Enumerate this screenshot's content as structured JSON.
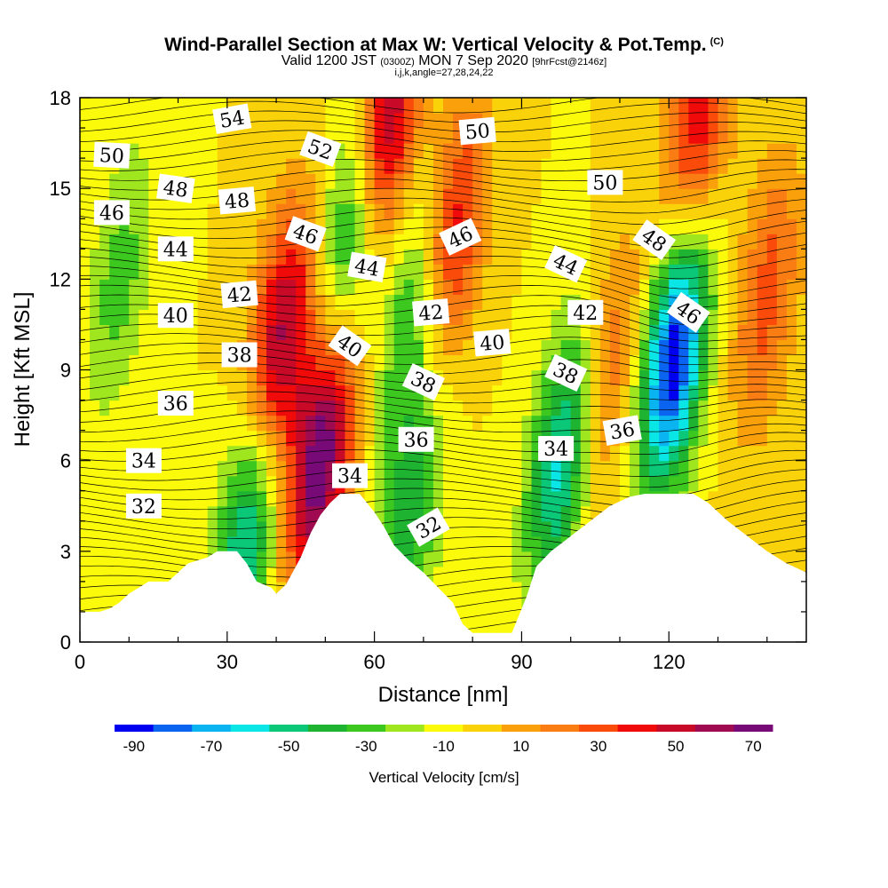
{
  "title": "Wind-Parallel Section at Max W: Vertical Velocity & Pot.Temp.",
  "copyright": "(C)",
  "subtitle": {
    "valid": "Valid 1200 JST",
    "utc": "(0300Z)",
    "date": "MON 7 Sep 2020",
    "forecast": "[9hrFcst@2146z]"
  },
  "params": "i,j,k,angle=27,28,24,22",
  "chart_data": {
    "type": "heatmap",
    "xlabel": "Distance [nm]",
    "ylabel": "Height [Kft MSL]",
    "xlim": [
      0,
      148
    ],
    "ylim": [
      0,
      18
    ],
    "x_ticks": [
      0,
      30,
      60,
      90,
      120
    ],
    "y_ticks": [
      0,
      3,
      6,
      9,
      12,
      15,
      18
    ],
    "colorbar": {
      "title": "Vertical Velocity [cm/s]",
      "range": [
        -90,
        80
      ],
      "step": 10,
      "tick_values": [
        -90,
        -70,
        -50,
        -30,
        -10,
        10,
        30,
        50,
        70
      ],
      "colors": [
        "#0000f0",
        "#0a64f0",
        "#0ab4f0",
        "#0ae6e6",
        "#0ac878",
        "#1eb432",
        "#3cc81e",
        "#a0e61e",
        "#fafa0a",
        "#fad20a",
        "#faa00a",
        "#fa7d14",
        "#fa4b0a",
        "#f00a0a",
        "#c80a28",
        "#a00a50",
        "#780a78"
      ]
    },
    "terrain": [
      [
        0,
        1.0
      ],
      [
        4,
        1.0
      ],
      [
        6,
        1.1
      ],
      [
        8,
        1.3
      ],
      [
        10,
        1.6
      ],
      [
        12,
        1.8
      ],
      [
        14,
        2.0
      ],
      [
        18,
        2.0
      ],
      [
        20,
        2.3
      ],
      [
        22,
        2.6
      ],
      [
        26,
        2.8
      ],
      [
        28,
        3.0
      ],
      [
        32,
        3.0
      ],
      [
        34,
        2.6
      ],
      [
        36,
        2.0
      ],
      [
        39,
        1.8
      ],
      [
        40,
        1.6
      ],
      [
        42,
        1.9
      ],
      [
        45,
        2.8
      ],
      [
        47,
        3.6
      ],
      [
        49,
        4.2
      ],
      [
        51,
        4.6
      ],
      [
        53,
        4.9
      ],
      [
        57,
        4.9
      ],
      [
        60,
        4.3
      ],
      [
        62,
        3.8
      ],
      [
        64,
        3.2
      ],
      [
        67,
        2.7
      ],
      [
        70,
        2.3
      ],
      [
        73,
        1.8
      ],
      [
        76,
        1.3
      ],
      [
        78,
        0.6
      ],
      [
        80,
        0.3
      ],
      [
        88,
        0.3
      ],
      [
        91,
        1.5
      ],
      [
        93,
        2.5
      ],
      [
        96,
        3.0
      ],
      [
        100,
        3.5
      ],
      [
        104,
        4.0
      ],
      [
        108,
        4.5
      ],
      [
        112,
        4.8
      ],
      [
        115,
        4.9
      ],
      [
        125,
        4.9
      ],
      [
        128,
        4.6
      ],
      [
        132,
        4.0
      ],
      [
        136,
        3.5
      ],
      [
        140,
        3.0
      ],
      [
        144,
        2.6
      ],
      [
        148,
        2.3
      ]
    ],
    "updraft_cores": [
      {
        "x": 41,
        "y": 10.0,
        "w": 65
      },
      {
        "x": 49,
        "y": 6.0,
        "w": 80
      },
      {
        "x": 62,
        "y": 17.0,
        "w": 75
      },
      {
        "x": 76,
        "y": 13.5,
        "w": 50
      },
      {
        "x": 126,
        "y": 17.0,
        "w": 50
      },
      {
        "x": 140,
        "y": 11.5,
        "w": 35
      },
      {
        "x": 108,
        "y": 9.0,
        "w": 30
      }
    ],
    "downdraft_cores": [
      {
        "x": 121,
        "y": 9.5,
        "w": -90
      },
      {
        "x": 98,
        "y": 6.0,
        "w": -55
      },
      {
        "x": 34,
        "y": 3.5,
        "w": -55
      },
      {
        "x": 56,
        "y": 14.0,
        "w": -55
      },
      {
        "x": 68,
        "y": 11.0,
        "w": -35
      },
      {
        "x": 67,
        "y": 4.0,
        "w": -35
      },
      {
        "x": 8,
        "y": 12.0,
        "w": -25
      }
    ],
    "isentrope_labels": [
      {
        "text": "54",
        "x": 31,
        "y": 17.3,
        "angle": -10
      },
      {
        "text": "52",
        "x": 49,
        "y": 16.3,
        "angle": 20
      },
      {
        "text": "50",
        "x": 6.5,
        "y": 16.1,
        "angle": 3
      },
      {
        "text": "50",
        "x": 81,
        "y": 16.9,
        "angle": -5
      },
      {
        "text": "50",
        "x": 107,
        "y": 15.2,
        "angle": 0
      },
      {
        "text": "48",
        "x": 19.5,
        "y": 15.0,
        "angle": 8
      },
      {
        "text": "48",
        "x": 32,
        "y": 14.6,
        "angle": -5
      },
      {
        "text": "48",
        "x": 117,
        "y": 13.3,
        "angle": 35
      },
      {
        "text": "46",
        "x": 6.5,
        "y": 14.2,
        "angle": 0
      },
      {
        "text": "46",
        "x": 46,
        "y": 13.5,
        "angle": 20
      },
      {
        "text": "46",
        "x": 77.5,
        "y": 13.4,
        "angle": -25
      },
      {
        "text": "46",
        "x": 124,
        "y": 10.9,
        "angle": 35
      },
      {
        "text": "44",
        "x": 19.5,
        "y": 13.0,
        "angle": 0
      },
      {
        "text": "44",
        "x": 58.5,
        "y": 12.4,
        "angle": 10
      },
      {
        "text": "44",
        "x": 99,
        "y": 12.5,
        "angle": 25
      },
      {
        "text": "42",
        "x": 32.5,
        "y": 11.5,
        "angle": -5
      },
      {
        "text": "42",
        "x": 71.5,
        "y": 10.9,
        "angle": -5
      },
      {
        "text": "42",
        "x": 103,
        "y": 10.9,
        "angle": 0
      },
      {
        "text": "40",
        "x": 19.5,
        "y": 10.8,
        "angle": 0
      },
      {
        "text": "40",
        "x": 55,
        "y": 9.8,
        "angle": 35
      },
      {
        "text": "40",
        "x": 84,
        "y": 9.9,
        "angle": -5
      },
      {
        "text": "38",
        "x": 32.5,
        "y": 9.5,
        "angle": 0
      },
      {
        "text": "38",
        "x": 70,
        "y": 8.6,
        "angle": 25
      },
      {
        "text": "38",
        "x": 99,
        "y": 8.9,
        "angle": 25
      },
      {
        "text": "36",
        "x": 19.5,
        "y": 7.9,
        "angle": 0
      },
      {
        "text": "36",
        "x": 68.5,
        "y": 6.7,
        "angle": 0
      },
      {
        "text": "36",
        "x": 110.5,
        "y": 7.0,
        "angle": -10
      },
      {
        "text": "34",
        "x": 13,
        "y": 6.0,
        "angle": 0
      },
      {
        "text": "34",
        "x": 55,
        "y": 5.5,
        "angle": 0
      },
      {
        "text": "34",
        "x": 97,
        "y": 6.4,
        "angle": 0
      },
      {
        "text": "32",
        "x": 13,
        "y": 4.5,
        "angle": 0
      },
      {
        "text": "32",
        "x": 71,
        "y": 3.8,
        "angle": -30
      }
    ]
  }
}
